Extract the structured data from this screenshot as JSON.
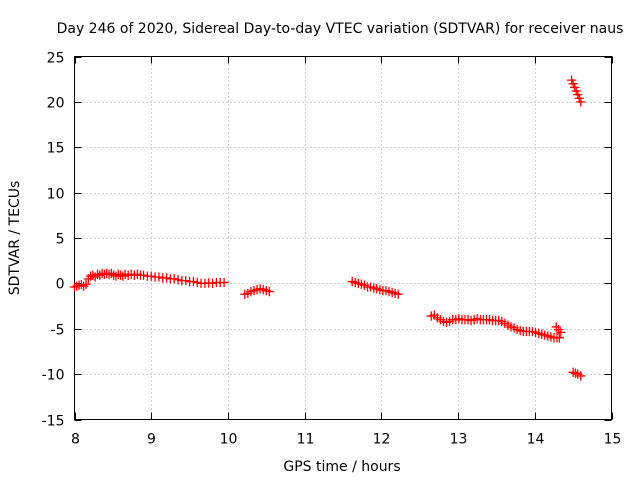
{
  "chart_data": {
    "type": "scatter",
    "title": "Day 246 of 2020, Sidereal Day-to-day VTEC variation (SDTVAR) for receiver naus",
    "xlabel": "GPS time / hours",
    "ylabel": "SDTVAR / TECUs",
    "xlim": [
      8,
      15
    ],
    "ylim": [
      -15,
      25
    ],
    "xticks": [
      8,
      9,
      10,
      11,
      12,
      13,
      14,
      15
    ],
    "yticks": [
      -15,
      -10,
      -5,
      0,
      5,
      10,
      15,
      20,
      25
    ],
    "xtick_labels": [
      "8",
      "9",
      "10",
      "11",
      "12",
      "13",
      "14",
      "15"
    ],
    "ytick_labels": [
      "-15",
      "-10",
      "-5",
      "0",
      "5",
      "10",
      "15",
      "20",
      "25"
    ],
    "grid": true,
    "marker": "plus",
    "series": [
      {
        "name": "SDTVAR",
        "color": "#ff0000",
        "points": [
          [
            8.0,
            -0.4
          ],
          [
            8.03,
            -0.3
          ],
          [
            8.06,
            -0.2
          ],
          [
            8.09,
            -0.15
          ],
          [
            8.12,
            -0.3
          ],
          [
            8.15,
            -0.1
          ],
          [
            8.18,
            0.5
          ],
          [
            8.21,
            0.8
          ],
          [
            8.24,
            0.9
          ],
          [
            8.27,
            0.7
          ],
          [
            8.3,
            1.0
          ],
          [
            8.33,
            0.9
          ],
          [
            8.36,
            1.1
          ],
          [
            8.39,
            1.0
          ],
          [
            8.42,
            1.1
          ],
          [
            8.45,
            1.0
          ],
          [
            8.48,
            1.1
          ],
          [
            8.51,
            0.9
          ],
          [
            8.54,
            0.8
          ],
          [
            8.57,
            1.0
          ],
          [
            8.6,
            0.9
          ],
          [
            8.63,
            0.8
          ],
          [
            8.66,
            1.0
          ],
          [
            8.7,
            0.9
          ],
          [
            8.74,
            1.0
          ],
          [
            8.78,
            0.9
          ],
          [
            8.82,
            1.0
          ],
          [
            8.86,
            0.9
          ],
          [
            8.9,
            0.9
          ],
          [
            8.95,
            0.8
          ],
          [
            9.0,
            0.8
          ],
          [
            9.05,
            0.7
          ],
          [
            9.1,
            0.7
          ],
          [
            9.15,
            0.6
          ],
          [
            9.2,
            0.6
          ],
          [
            9.25,
            0.5
          ],
          [
            9.3,
            0.5
          ],
          [
            9.35,
            0.4
          ],
          [
            9.4,
            0.3
          ],
          [
            9.45,
            0.3
          ],
          [
            9.5,
            0.2
          ],
          [
            9.55,
            0.2
          ],
          [
            9.6,
            0.1
          ],
          [
            9.65,
            0.0
          ],
          [
            9.7,
            0.0
          ],
          [
            9.75,
            0.05
          ],
          [
            9.8,
            0.0
          ],
          [
            9.85,
            0.1
          ],
          [
            9.9,
            0.1
          ],
          [
            9.95,
            0.1
          ],
          [
            10.22,
            -1.2
          ],
          [
            10.26,
            -1.1
          ],
          [
            10.3,
            -0.9
          ],
          [
            10.34,
            -0.8
          ],
          [
            10.38,
            -0.7
          ],
          [
            10.42,
            -0.6
          ],
          [
            10.46,
            -0.7
          ],
          [
            10.5,
            -0.8
          ],
          [
            10.54,
            -0.9
          ],
          [
            11.62,
            0.2
          ],
          [
            11.66,
            0.1
          ],
          [
            11.7,
            0.0
          ],
          [
            11.74,
            -0.1
          ],
          [
            11.78,
            -0.2
          ],
          [
            11.82,
            -0.4
          ],
          [
            11.86,
            -0.4
          ],
          [
            11.9,
            -0.5
          ],
          [
            11.94,
            -0.6
          ],
          [
            11.98,
            -0.7
          ],
          [
            12.02,
            -0.8
          ],
          [
            12.06,
            -0.8
          ],
          [
            12.1,
            -0.9
          ],
          [
            12.14,
            -1.0
          ],
          [
            12.18,
            -1.1
          ],
          [
            12.22,
            -1.2
          ],
          [
            12.65,
            -3.6
          ],
          [
            12.69,
            -3.5
          ],
          [
            12.73,
            -3.8
          ],
          [
            12.77,
            -4.0
          ],
          [
            12.81,
            -4.2
          ],
          [
            12.85,
            -4.3
          ],
          [
            12.89,
            -4.2
          ],
          [
            12.93,
            -4.0
          ],
          [
            12.97,
            -4.0
          ],
          [
            13.01,
            -3.9
          ],
          [
            13.05,
            -4.0
          ],
          [
            13.09,
            -4.0
          ],
          [
            13.13,
            -4.0
          ],
          [
            13.17,
            -4.1
          ],
          [
            13.21,
            -4.0
          ],
          [
            13.25,
            -3.9
          ],
          [
            13.29,
            -4.0
          ],
          [
            13.33,
            -4.0
          ],
          [
            13.37,
            -4.0
          ],
          [
            13.41,
            -4.0
          ],
          [
            13.45,
            -4.1
          ],
          [
            13.49,
            -4.1
          ],
          [
            13.53,
            -4.1
          ],
          [
            13.57,
            -4.2
          ],
          [
            13.61,
            -4.4
          ],
          [
            13.65,
            -4.6
          ],
          [
            13.69,
            -4.8
          ],
          [
            13.73,
            -4.9
          ],
          [
            13.77,
            -5.1
          ],
          [
            13.81,
            -5.2
          ],
          [
            13.85,
            -5.3
          ],
          [
            13.89,
            -5.3
          ],
          [
            13.93,
            -5.3
          ],
          [
            13.97,
            -5.3
          ],
          [
            14.01,
            -5.4
          ],
          [
            14.05,
            -5.5
          ],
          [
            14.09,
            -5.6
          ],
          [
            14.13,
            -5.7
          ],
          [
            14.17,
            -5.8
          ],
          [
            14.21,
            -5.9
          ],
          [
            14.25,
            -6.0
          ],
          [
            14.29,
            -6.0
          ],
          [
            14.32,
            -6.0
          ],
          [
            14.28,
            -4.8
          ],
          [
            14.31,
            -5.1
          ],
          [
            14.34,
            -5.4
          ],
          [
            14.48,
            22.4
          ],
          [
            14.5,
            22.0
          ],
          [
            14.52,
            21.6
          ],
          [
            14.54,
            21.2
          ],
          [
            14.56,
            20.8
          ],
          [
            14.58,
            20.4
          ],
          [
            14.6,
            20.0
          ],
          [
            14.5,
            -9.8
          ],
          [
            14.53,
            -9.9
          ],
          [
            14.56,
            -10.0
          ],
          [
            14.6,
            -10.2
          ]
        ]
      }
    ]
  }
}
